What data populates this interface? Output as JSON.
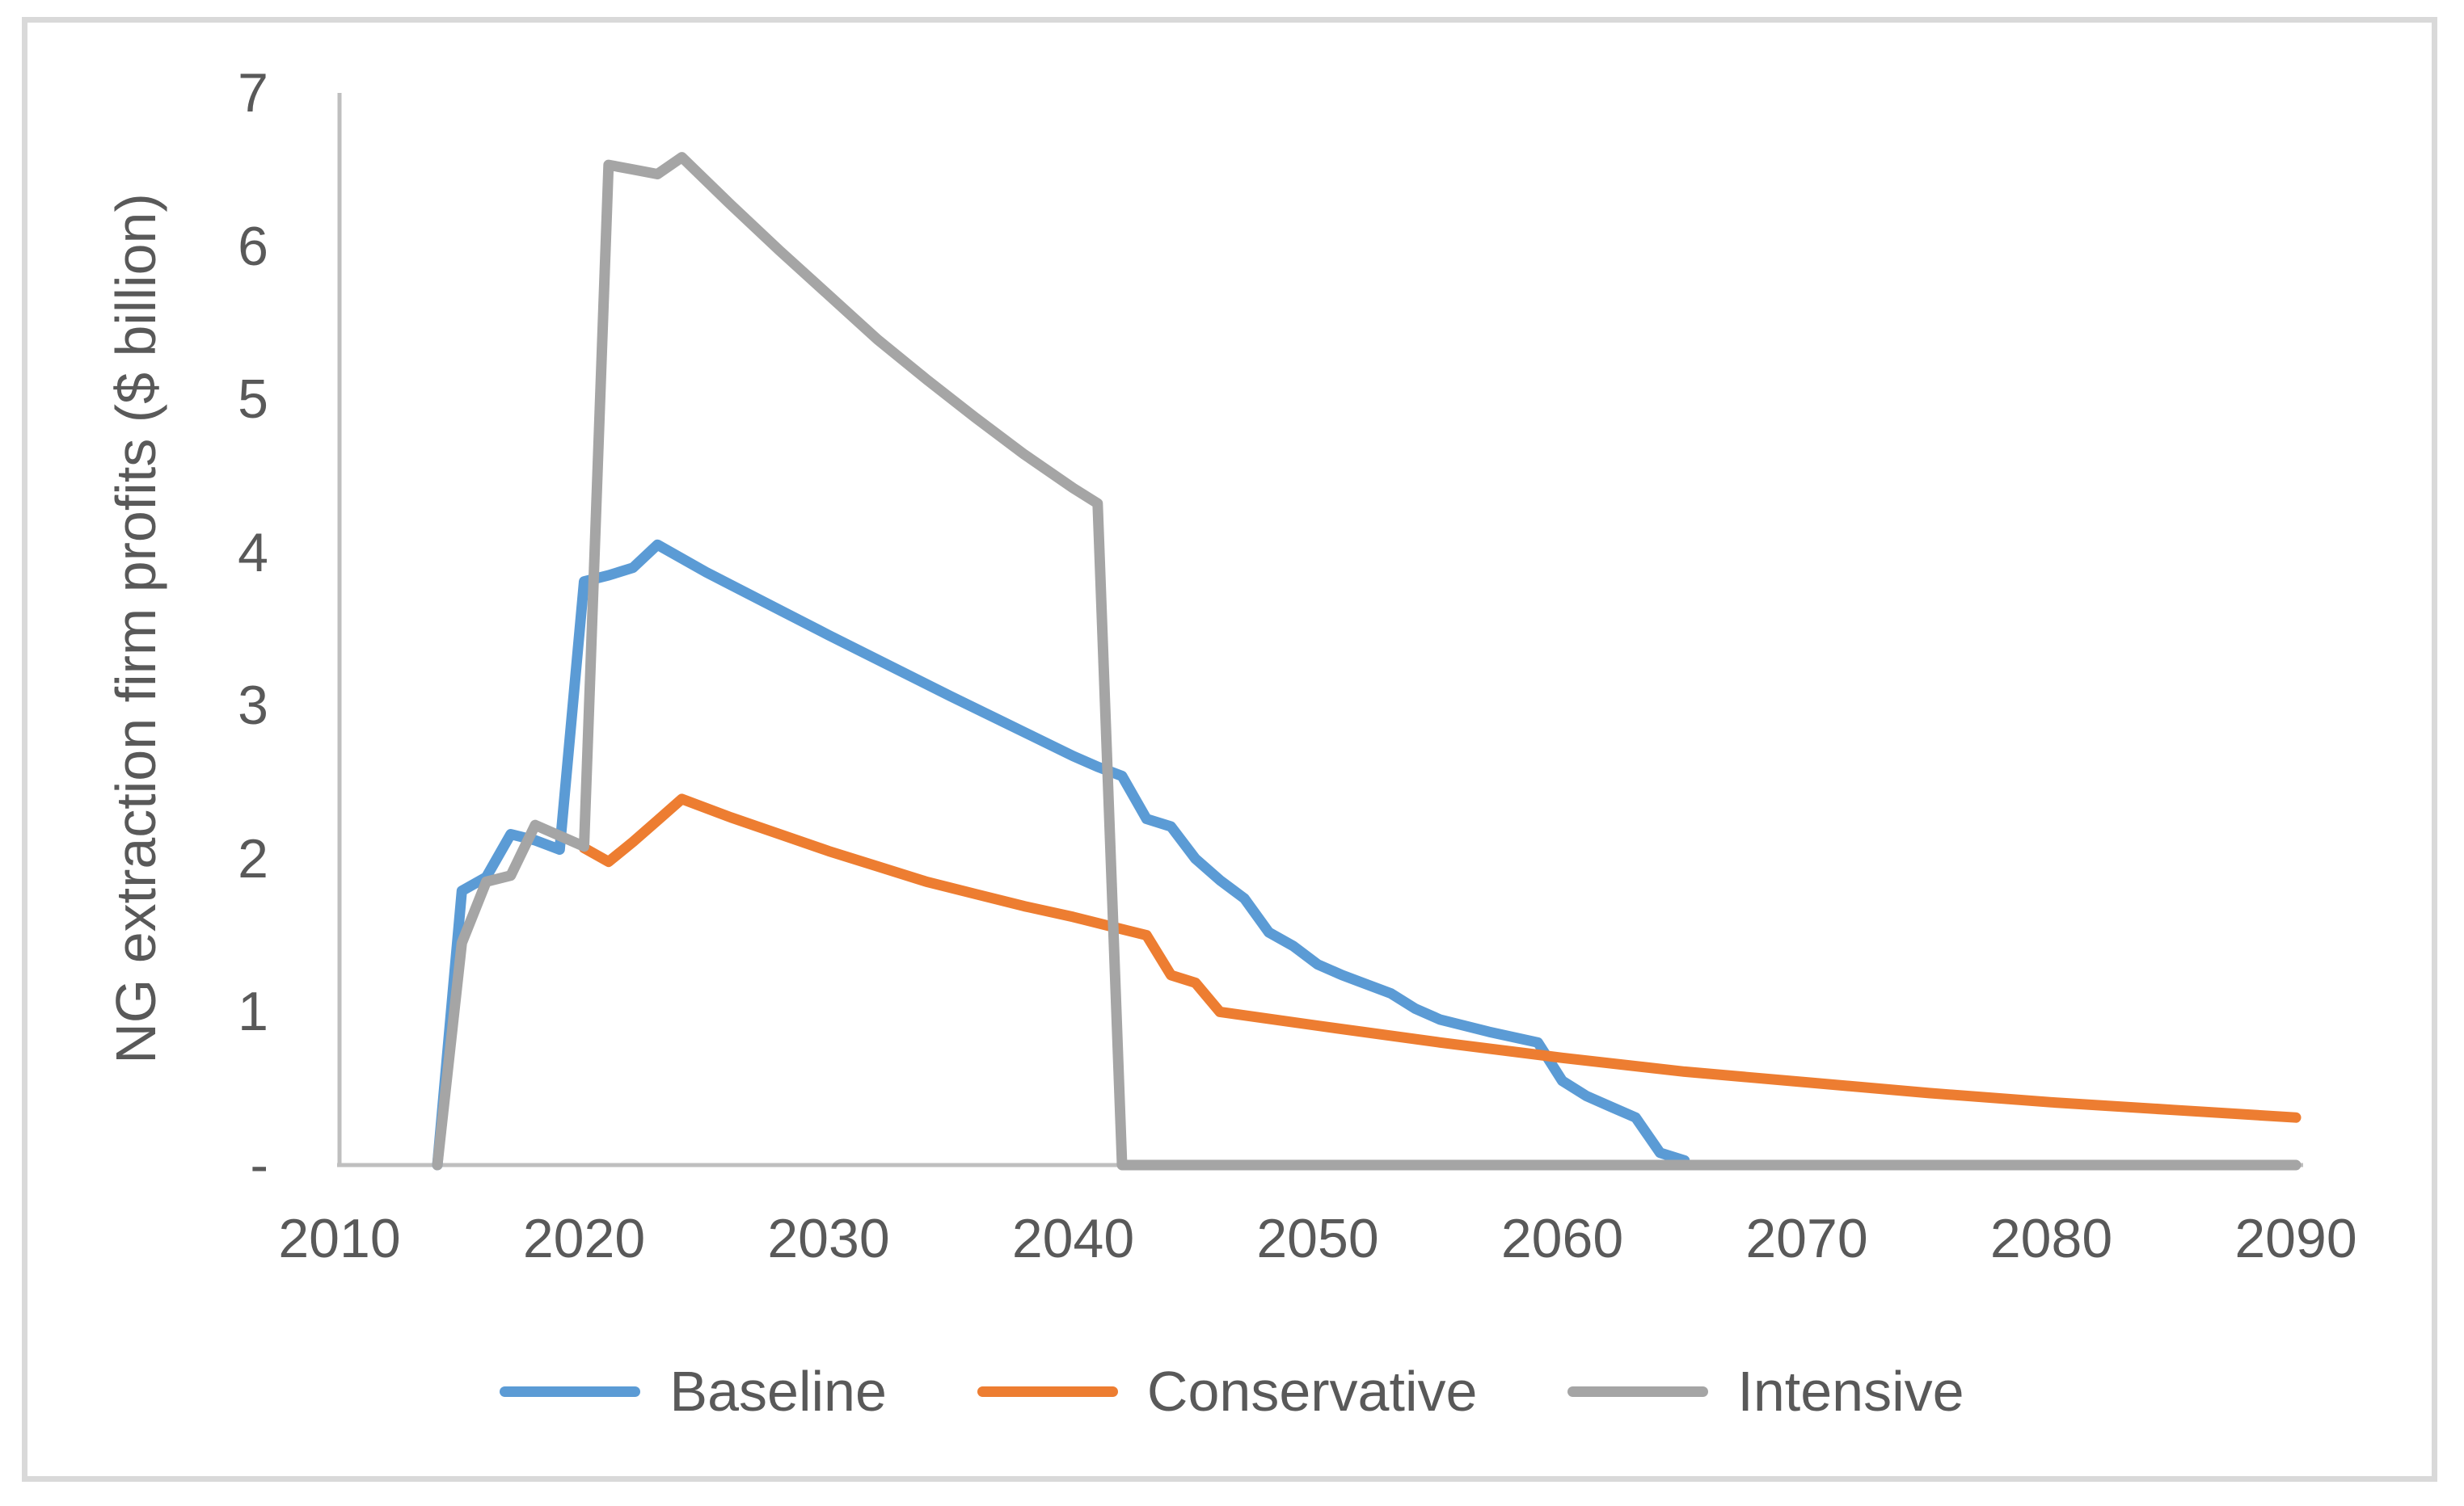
{
  "chart_data": {
    "type": "line",
    "title": "",
    "xlabel": "",
    "ylabel": "NG extraction firm profits ($ billion)",
    "grid": false,
    "legend_position": "bottom",
    "colors": {
      "axis_line": "#BFBFBF",
      "tick_text": "#595959",
      "chart_border": "#D9D9D9"
    },
    "x_axis": {
      "min": 2010,
      "max": 2090,
      "tick_labels": [
        "2010",
        "2020",
        "2030",
        "2040",
        "2050",
        "2060",
        "2070",
        "2080",
        "2090"
      ],
      "tick_values": [
        2010,
        2020,
        2030,
        2040,
        2050,
        2060,
        2070,
        2080,
        2090
      ]
    },
    "y_axis": {
      "min": 0,
      "max": 7,
      "ticks": [
        {
          "label": "7",
          "value": 7
        },
        {
          "label": "6",
          "value": 6
        },
        {
          "label": "5",
          "value": 5
        },
        {
          "label": "4",
          "value": 4
        },
        {
          "label": "3",
          "value": 3
        },
        {
          "label": "2",
          "value": 2
        },
        {
          "label": "1",
          "value": 1
        },
        {
          "label": "-",
          "value": 0
        }
      ]
    },
    "series": [
      {
        "name": "Baseline",
        "color": "#5B9BD5",
        "points": [
          [
            2014,
            0.0
          ],
          [
            2015,
            1.79
          ],
          [
            2016,
            1.88
          ],
          [
            2017,
            2.16
          ],
          [
            2018,
            2.12
          ],
          [
            2019,
            2.06
          ],
          [
            2020,
            3.81
          ],
          [
            2021,
            3.85
          ],
          [
            2022,
            3.9
          ],
          [
            2023,
            4.05
          ],
          [
            2025,
            3.87
          ],
          [
            2030,
            3.46
          ],
          [
            2035,
            3.06
          ],
          [
            2040,
            2.67
          ],
          [
            2041,
            2.6
          ],
          [
            2042,
            2.54
          ],
          [
            2043,
            2.26
          ],
          [
            2044,
            2.21
          ],
          [
            2045,
            2.0
          ],
          [
            2046,
            1.86
          ],
          [
            2047,
            1.74
          ],
          [
            2048,
            1.52
          ],
          [
            2049,
            1.43
          ],
          [
            2050,
            1.31
          ],
          [
            2051,
            1.24
          ],
          [
            2052,
            1.18
          ],
          [
            2053,
            1.12
          ],
          [
            2054,
            1.02
          ],
          [
            2055,
            0.95
          ],
          [
            2057,
            0.87
          ],
          [
            2059,
            0.8
          ],
          [
            2060,
            0.55
          ],
          [
            2061,
            0.45
          ],
          [
            2062,
            0.38
          ],
          [
            2063,
            0.31
          ],
          [
            2064,
            0.08
          ],
          [
            2065,
            0.03
          ]
        ]
      },
      {
        "name": "Conservative",
        "color": "#ED7D31",
        "points": [
          [
            2020,
            2.07
          ],
          [
            2021,
            1.98
          ],
          [
            2022,
            2.11
          ],
          [
            2023,
            2.25
          ],
          [
            2024,
            2.39
          ],
          [
            2026,
            2.27
          ],
          [
            2028,
            2.16
          ],
          [
            2030,
            2.05
          ],
          [
            2032,
            1.95
          ],
          [
            2034,
            1.85
          ],
          [
            2036,
            1.77
          ],
          [
            2038,
            1.69
          ],
          [
            2040,
            1.62
          ],
          [
            2042,
            1.54
          ],
          [
            2043,
            1.5
          ],
          [
            2044,
            1.24
          ],
          [
            2045,
            1.19
          ],
          [
            2046,
            1.0
          ],
          [
            2050,
            0.91
          ],
          [
            2055,
            0.8
          ],
          [
            2060,
            0.7
          ],
          [
            2065,
            0.61
          ],
          [
            2070,
            0.54
          ],
          [
            2075,
            0.47
          ],
          [
            2080,
            0.41
          ],
          [
            2085,
            0.36
          ],
          [
            2090,
            0.31
          ]
        ]
      },
      {
        "name": "Intensive",
        "color": "#A5A5A5",
        "points": [
          [
            2014,
            0.0
          ],
          [
            2015,
            1.45
          ],
          [
            2016,
            1.85
          ],
          [
            2017,
            1.89
          ],
          [
            2018,
            2.22
          ],
          [
            2019,
            2.15
          ],
          [
            2020,
            2.08
          ],
          [
            2021,
            6.53
          ],
          [
            2022,
            6.5
          ],
          [
            2023,
            6.47
          ],
          [
            2024,
            6.58
          ],
          [
            2026,
            6.27
          ],
          [
            2028,
            5.97
          ],
          [
            2030,
            5.68
          ],
          [
            2032,
            5.39
          ],
          [
            2034,
            5.13
          ],
          [
            2036,
            4.88
          ],
          [
            2038,
            4.64
          ],
          [
            2040,
            4.42
          ],
          [
            2041,
            4.32
          ],
          [
            2042,
            0.0
          ],
          [
            2090,
            0.0
          ]
        ]
      }
    ]
  }
}
